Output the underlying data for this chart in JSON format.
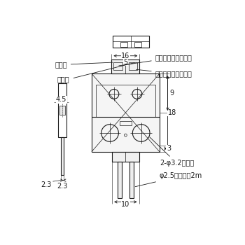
{
  "bg_color": "#ffffff",
  "line_color": "#1a1a1a",
  "lw": 0.8,
  "tlw": 0.5,
  "labels": {
    "toko_bu": "投光部",
    "juko_bu": "受光部",
    "antei": "安定表示灯（緑色）",
    "dosa": "動作表示灯（橙色）",
    "toritsuke": "2-φ3.2取付稴",
    "cable": "φ2.5ケーブル2m"
  },
  "dims": {
    "d16": "16",
    "d5": "5",
    "d4p5": "4.5",
    "d9": "9",
    "d18": "18",
    "d3": "3",
    "d10": "10",
    "d2p3": "2.3"
  }
}
